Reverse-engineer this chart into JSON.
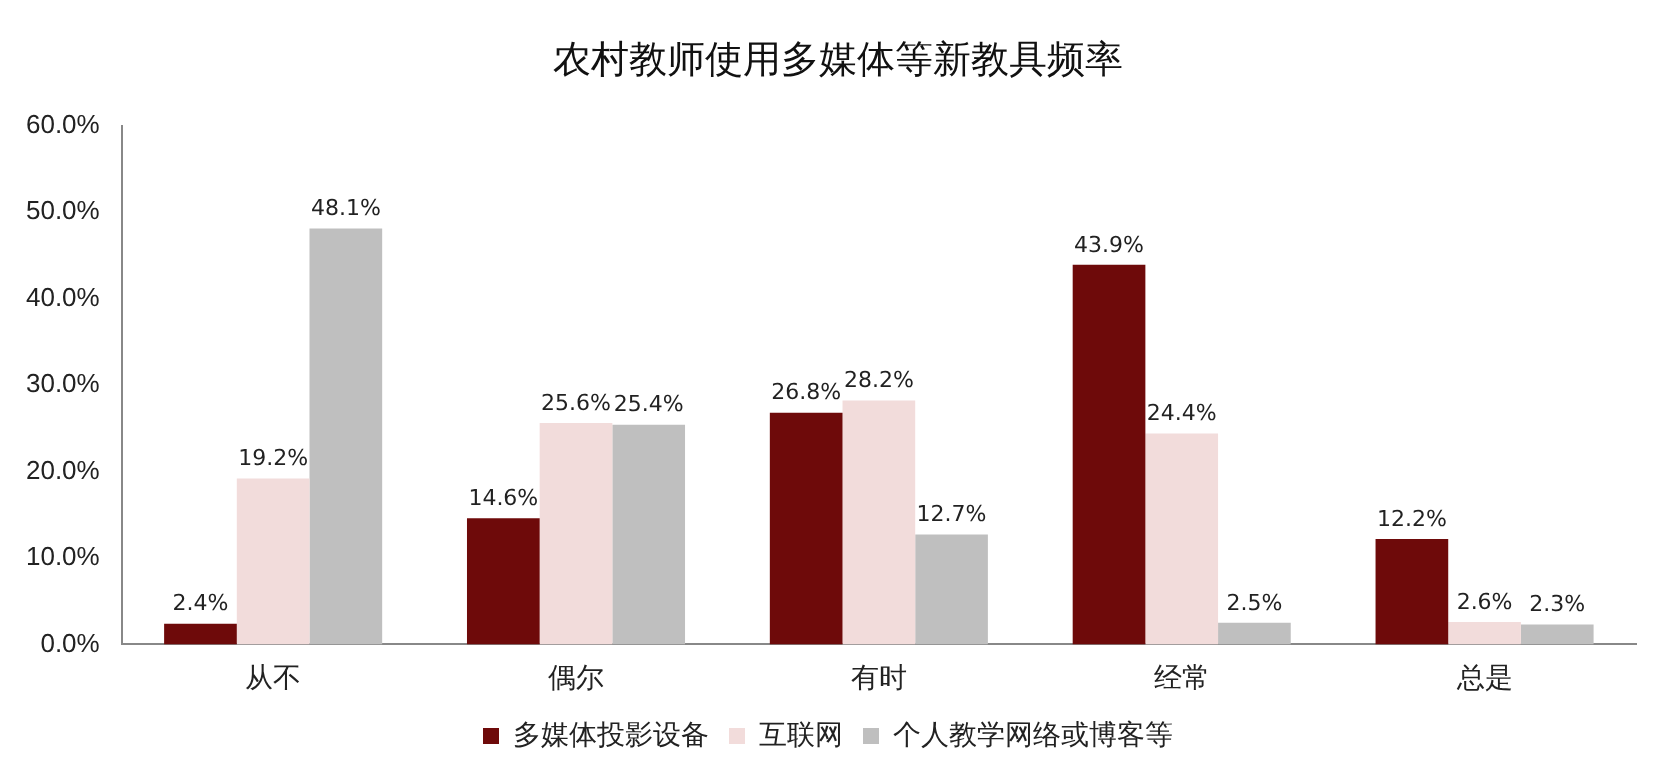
{
  "chart_data": {
    "type": "bar",
    "title": "农村教师使用多媒体等新教具频率",
    "categories": [
      "从不",
      "偶尔",
      "有时",
      "经常",
      "总是"
    ],
    "series": [
      {
        "name": "多媒体投影设备",
        "color": "#6e0a0a",
        "values": [
          2.4,
          14.6,
          26.8,
          43.9,
          12.2
        ],
        "value_labels": [
          "2.4%",
          "14.6%",
          "26.8%",
          "43.9%",
          "12.2%"
        ]
      },
      {
        "name": "互联网",
        "color": "#f2dcdb",
        "values": [
          19.2,
          25.6,
          28.2,
          24.4,
          2.6
        ],
        "value_labels": [
          "19.2%",
          "25.6%",
          "28.2%",
          "24.4%",
          "2.6%"
        ]
      },
      {
        "name": "个人教学网络或博客等",
        "color": "#bfbfbf",
        "values": [
          48.1,
          25.4,
          12.7,
          2.5,
          2.3
        ],
        "value_labels": [
          "48.1%",
          "25.4%",
          "12.7%",
          "2.5%",
          "2.3%"
        ]
      }
    ],
    "ylim": [
      0,
      60
    ],
    "yticks": [
      {
        "value": 0,
        "label": "0.0%"
      },
      {
        "value": 10,
        "label": "10.0%"
      },
      {
        "value": 20,
        "label": "20.0%"
      },
      {
        "value": 30,
        "label": "30.0%"
      },
      {
        "value": 40,
        "label": "40.0%"
      },
      {
        "value": 50,
        "label": "50.0%"
      },
      {
        "value": 60,
        "label": "60.0%"
      }
    ],
    "grid": false,
    "legend": "bottom"
  }
}
